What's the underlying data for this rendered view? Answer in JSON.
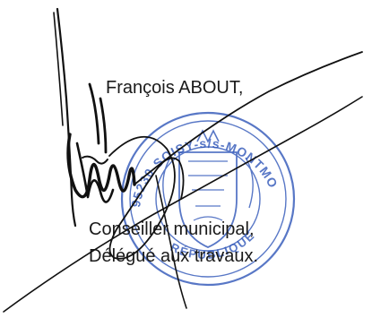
{
  "signatory": {
    "name": "François ABOUT,",
    "title_line1": "Conseiller municipal,",
    "title_line2": "Délégué aux travaux."
  },
  "stamp": {
    "top_text": "95230 SOISY-s/s-MONTMORENCY",
    "bottom_text": "RÉPUBLIQUE",
    "ink_color": "#2f56b8"
  },
  "signature": {
    "ink_color": "#111111"
  }
}
